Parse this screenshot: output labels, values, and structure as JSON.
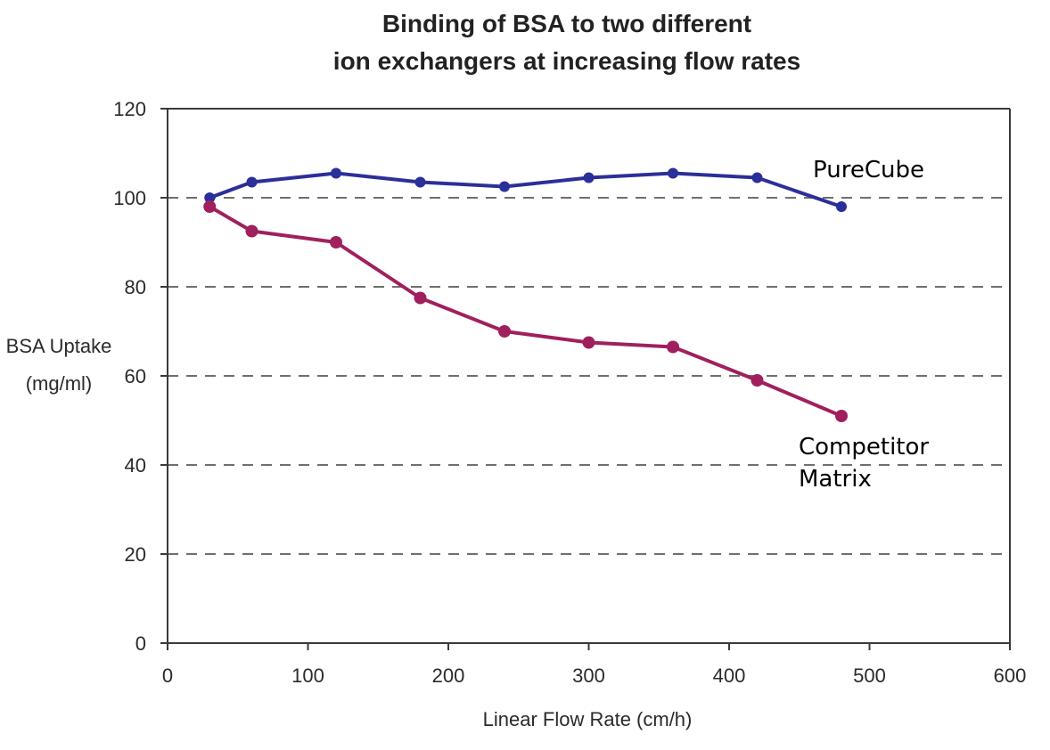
{
  "chart_data": {
    "type": "line",
    "title_lines": [
      "Binding of BSA to two different",
      "ion exchangers at increasing flow rates"
    ],
    "xlabel": "Linear Flow Rate (cm/h)",
    "ylabel_lines": [
      "BSA Uptake",
      "(mg/ml)"
    ],
    "xlim": [
      0,
      600
    ],
    "ylim": [
      0,
      120
    ],
    "x_ticks": [
      0,
      100,
      200,
      300,
      400,
      500,
      600
    ],
    "y_ticks": [
      0,
      20,
      40,
      60,
      80,
      100,
      120
    ],
    "x_tick_labels": [
      "0",
      "100",
      "200",
      "300",
      "400",
      "500",
      "600"
    ],
    "y_tick_labels": [
      "0",
      "20",
      "40",
      "60",
      "80",
      "100",
      "120"
    ],
    "gridlines_y": [
      20,
      40,
      60,
      80,
      100
    ],
    "legend": "inline-labels",
    "x": [
      30,
      60,
      120,
      180,
      240,
      300,
      360,
      420,
      480
    ],
    "series": [
      {
        "name": "PureCube",
        "label_lines": [
          "PureCube"
        ],
        "color": "#2b2f9a",
        "values": [
          100,
          103.5,
          105.5,
          103.5,
          102.5,
          104.5,
          105.5,
          104.5,
          98
        ]
      },
      {
        "name": "Competitor Matrix",
        "label_lines": [
          "Competitor",
          "Matrix"
        ],
        "color": "#a0205e",
        "values": [
          98,
          92.5,
          90,
          77.5,
          70,
          67.5,
          66.5,
          59,
          51
        ]
      }
    ]
  }
}
